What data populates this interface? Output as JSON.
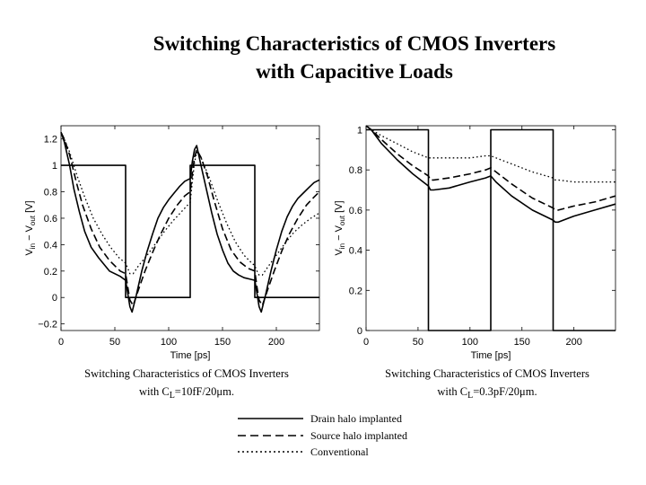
{
  "slide": {
    "title_line1": "Switching Characteristics of CMOS Inverters",
    "title_line2": "with Capacitive Loads"
  },
  "legend": [
    {
      "label": "Drain halo implanted",
      "style": "solid"
    },
    {
      "label": "Source halo implanted",
      "style": "dashed"
    },
    {
      "label": "Conventional",
      "style": "dotted"
    }
  ],
  "chart_data": [
    {
      "type": "line",
      "caption_line1": "Switching Characteristics of CMOS Inverters",
      "caption_line2": "with C",
      "caption_sub": "L",
      "caption_rest": "=10fF/20μm.",
      "xlabel": "Time [ps]",
      "ylabel": "V",
      "ylabel_full": "V_in - V_out [V]",
      "xlim": [
        0,
        240
      ],
      "ylim": [
        -0.25,
        1.3
      ],
      "xticks": [
        0,
        50,
        100,
        150,
        200
      ],
      "yticks": [
        -0.2,
        0,
        0.2,
        0.4,
        0.6,
        0.8,
        1,
        1.2
      ],
      "ytick_labels": [
        "−0.2",
        "0",
        "0.2",
        "0.4",
        "0.6",
        "0.8",
        "1",
        "1.2"
      ],
      "grid": false,
      "series": [
        {
          "name": "Input",
          "style": "solid",
          "x": [
            0,
            60,
            60,
            120,
            120,
            180,
            180,
            240
          ],
          "y": [
            1,
            1,
            0,
            0,
            1,
            1,
            0,
            0
          ]
        },
        {
          "name": "Drain halo implanted",
          "style": "solid",
          "x": [
            0,
            3,
            8,
            12,
            17,
            22,
            28,
            35,
            45,
            55,
            60,
            62,
            64,
            66,
            70,
            75,
            80,
            85,
            90,
            95,
            100,
            105,
            110,
            115,
            120,
            122,
            124,
            126,
            130,
            135,
            140,
            145,
            150,
            155,
            160,
            165,
            170,
            175,
            180,
            182,
            184,
            186,
            190,
            195,
            200,
            205,
            210,
            215,
            220,
            225,
            230,
            235,
            240
          ],
          "y": [
            1.25,
            1.18,
            1.0,
            0.82,
            0.65,
            0.5,
            0.38,
            0.3,
            0.2,
            0.16,
            0.13,
            0.03,
            -0.07,
            -0.11,
            0.02,
            0.2,
            0.35,
            0.48,
            0.6,
            0.68,
            0.74,
            0.79,
            0.84,
            0.88,
            0.9,
            1.03,
            1.12,
            1.15,
            1.0,
            0.82,
            0.64,
            0.48,
            0.36,
            0.26,
            0.2,
            0.17,
            0.15,
            0.14,
            0.13,
            0.03,
            -0.07,
            -0.11,
            0.02,
            0.2,
            0.36,
            0.5,
            0.61,
            0.69,
            0.75,
            0.79,
            0.83,
            0.87,
            0.89
          ]
        },
        {
          "name": "Source halo implanted",
          "style": "dashed",
          "x": [
            0,
            3,
            8,
            14,
            20,
            28,
            36,
            45,
            55,
            60,
            62,
            64,
            67,
            72,
            78,
            85,
            92,
            100,
            108,
            115,
            120,
            122,
            124,
            126,
            130,
            136,
            142,
            150,
            158,
            166,
            174,
            180,
            182,
            184,
            187,
            192,
            198,
            205,
            212,
            220,
            228,
            235,
            240
          ],
          "y": [
            1.25,
            1.2,
            1.08,
            0.88,
            0.7,
            0.52,
            0.38,
            0.28,
            0.2,
            0.18,
            0.08,
            -0.02,
            -0.06,
            0.06,
            0.2,
            0.34,
            0.47,
            0.6,
            0.7,
            0.77,
            0.8,
            0.94,
            1.06,
            1.12,
            1.06,
            0.92,
            0.74,
            0.52,
            0.36,
            0.27,
            0.22,
            0.2,
            0.08,
            -0.02,
            -0.06,
            0.06,
            0.2,
            0.35,
            0.48,
            0.6,
            0.7,
            0.76,
            0.8
          ]
        },
        {
          "name": "Conventional",
          "style": "dotted",
          "x": [
            0,
            3,
            8,
            15,
            22,
            30,
            38,
            46,
            54,
            60,
            62,
            64,
            67,
            72,
            80,
            88,
            96,
            104,
            112,
            120,
            122,
            124,
            126,
            130,
            138,
            146,
            154,
            162,
            170,
            176,
            180,
            182,
            184,
            187,
            192,
            200,
            208,
            216,
            224,
            232,
            240
          ],
          "y": [
            1.25,
            1.2,
            1.1,
            0.92,
            0.76,
            0.6,
            0.48,
            0.38,
            0.3,
            0.26,
            0.22,
            0.18,
            0.18,
            0.24,
            0.32,
            0.41,
            0.5,
            0.58,
            0.65,
            0.72,
            0.88,
            1.02,
            1.1,
            1.06,
            0.9,
            0.72,
            0.56,
            0.42,
            0.32,
            0.27,
            0.24,
            0.2,
            0.17,
            0.17,
            0.23,
            0.32,
            0.41,
            0.49,
            0.55,
            0.6,
            0.64
          ]
        }
      ]
    },
    {
      "type": "line",
      "caption_line1": "Switching Characteristics of CMOS Inverters",
      "caption_line2": "with C",
      "caption_sub": "L",
      "caption_rest": "=0.3pF/20μm.",
      "xlabel": "Time [ps]",
      "ylabel": "V",
      "ylabel_full": "V_in - V_out [V]",
      "xlim": [
        0,
        240
      ],
      "ylim": [
        0,
        1.02
      ],
      "xticks": [
        0,
        50,
        100,
        150,
        200
      ],
      "yticks": [
        0,
        0.2,
        0.4,
        0.6,
        0.8,
        1
      ],
      "ytick_labels": [
        "0",
        "0.2",
        "0.4",
        "0.6",
        "0.8",
        "1"
      ],
      "grid": false,
      "series": [
        {
          "name": "Input",
          "style": "solid",
          "x": [
            0,
            60,
            60,
            120,
            120,
            180,
            180,
            240
          ],
          "y": [
            1,
            1,
            0,
            0,
            1,
            1,
            0,
            0
          ]
        },
        {
          "name": "Drain halo implanted",
          "style": "solid",
          "x": [
            0,
            5,
            15,
            30,
            45,
            60,
            62,
            65,
            80,
            100,
            115,
            120,
            125,
            140,
            160,
            180,
            182,
            185,
            200,
            220,
            240
          ],
          "y": [
            1.02,
            1.0,
            0.93,
            0.85,
            0.78,
            0.72,
            0.7,
            0.7,
            0.71,
            0.74,
            0.76,
            0.77,
            0.74,
            0.67,
            0.6,
            0.55,
            0.54,
            0.54,
            0.57,
            0.6,
            0.63
          ]
        },
        {
          "name": "Source halo implanted",
          "style": "dashed",
          "x": [
            0,
            5,
            15,
            30,
            45,
            60,
            62,
            65,
            80,
            100,
            115,
            120,
            125,
            140,
            160,
            180,
            182,
            185,
            200,
            220,
            240
          ],
          "y": [
            1.02,
            1.0,
            0.95,
            0.88,
            0.82,
            0.77,
            0.75,
            0.75,
            0.76,
            0.78,
            0.8,
            0.81,
            0.79,
            0.73,
            0.66,
            0.61,
            0.6,
            0.6,
            0.62,
            0.64,
            0.67
          ]
        },
        {
          "name": "Conventional",
          "style": "dotted",
          "x": [
            0,
            5,
            15,
            30,
            45,
            60,
            62,
            65,
            80,
            100,
            115,
            120,
            125,
            140,
            160,
            180,
            182,
            185,
            200,
            220,
            240
          ],
          "y": [
            1.02,
            1.0,
            0.97,
            0.93,
            0.89,
            0.86,
            0.86,
            0.86,
            0.86,
            0.86,
            0.87,
            0.87,
            0.86,
            0.83,
            0.79,
            0.76,
            0.75,
            0.75,
            0.74,
            0.74,
            0.74
          ]
        }
      ]
    }
  ]
}
